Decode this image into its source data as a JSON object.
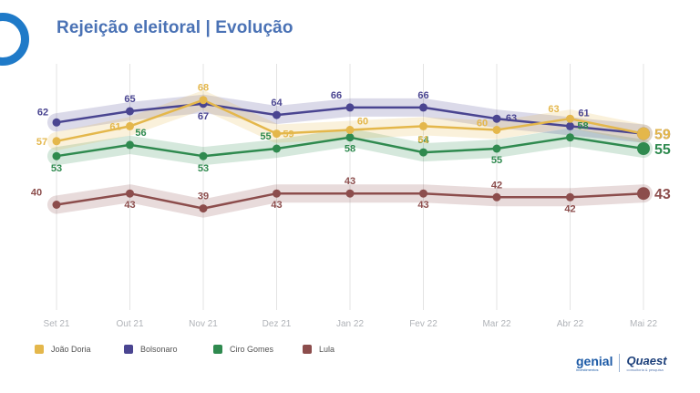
{
  "title": "Rejeição eleitoral | Evolução",
  "brand": {
    "genial_name": "genial",
    "genial_sub": "investimentos",
    "quaest_name": "Quaest",
    "quaest_sub": "consultoria & pesquisa"
  },
  "chart_data": {
    "type": "line",
    "categories": [
      "Set 21",
      "Out 21",
      "Nov 21",
      "Dez 21",
      "Jan 22",
      "Fev 22",
      "Mar 22",
      "Abr 22",
      "Mai 22"
    ],
    "series": [
      {
        "name": "João Doria",
        "color": "#e4b74b",
        "values": [
          57,
          61,
          68,
          59,
          60,
          61,
          60,
          63,
          59
        ]
      },
      {
        "name": "Bolsonaro",
        "color": "#4a4591",
        "values": [
          62,
          65,
          67,
          64,
          66,
          66,
          63,
          61,
          59
        ]
      },
      {
        "name": "Ciro Gomes",
        "color": "#2f8a4f",
        "values": [
          53,
          56,
          53,
          55,
          58,
          54,
          55,
          58,
          55
        ]
      },
      {
        "name": "Lula",
        "color": "#8c4d4c",
        "values": [
          40,
          43,
          39,
          43,
          43,
          43,
          42,
          42,
          43
        ]
      }
    ],
    "ylim": [
      35,
      70
    ],
    "grid": "vertical",
    "legend_position": "bottom-left"
  }
}
